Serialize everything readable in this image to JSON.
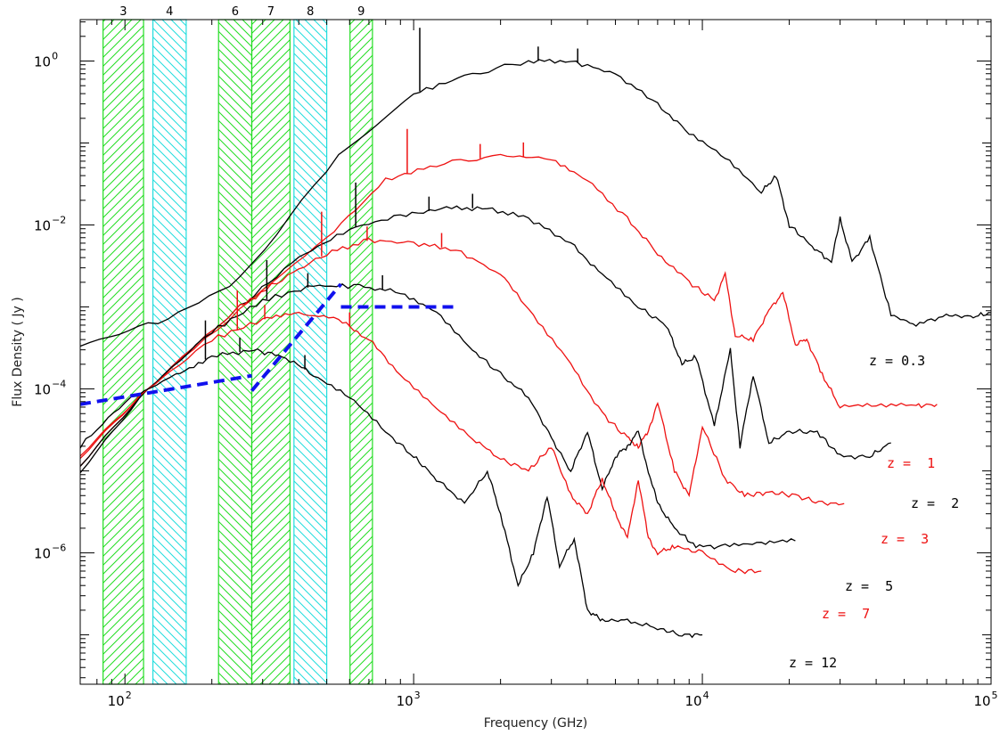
{
  "colors": {
    "black_curve": "#000000",
    "red_curve": "#ee1111",
    "band_green": "#22dd22",
    "band_cyan": "#22dddd",
    "sensitivity": "#1111ee"
  },
  "chart_data": {
    "type": "line",
    "title": "",
    "xlabel": "Frequency (GHz)",
    "ylabel": "Flux Density ( Jy )",
    "xscale": "log",
    "yscale": "log",
    "xlim": [
      70,
      100000
    ],
    "ylim": [
      2.5e-08,
      3.2
    ],
    "x_ticks": [
      {
        "value": 100,
        "base": "10",
        "exp": "2"
      },
      {
        "value": 1000,
        "base": "10",
        "exp": "3"
      },
      {
        "value": 10000,
        "base": "10",
        "exp": "4"
      },
      {
        "value": 100000,
        "base": "10",
        "exp": "5"
      }
    ],
    "y_ticks": [
      {
        "value": 1e-06,
        "base": "10",
        "exp": "−6"
      },
      {
        "value": 0.0001,
        "base": "10",
        "exp": "−4"
      },
      {
        "value": 0.01,
        "base": "10",
        "exp": "−2"
      },
      {
        "value": 1,
        "base": "10",
        "exp": "0"
      }
    ],
    "grid": false,
    "bands": [
      {
        "label": "3",
        "range": [
          84,
          116
        ],
        "color": "green",
        "hatch": "right"
      },
      {
        "label": "4",
        "range": [
          125,
          163
        ],
        "color": "cyan",
        "hatch": "left"
      },
      {
        "label": "6",
        "range": [
          211,
          275
        ],
        "color": "green",
        "hatch": "left"
      },
      {
        "label": "7",
        "range": [
          275,
          373
        ],
        "color": "green",
        "hatch": "right"
      },
      {
        "label": "8",
        "range": [
          385,
          500
        ],
        "color": "cyan",
        "hatch": "left"
      },
      {
        "label": "9",
        "range": [
          602,
          720
        ],
        "color": "green",
        "hatch": "right"
      }
    ],
    "sensitivity_lines": [
      {
        "x": [
          70,
          275
        ],
        "y": [
          6.5e-05,
          0.000145
        ]
      },
      {
        "x": [
          275,
          560
        ],
        "y": [
          9.5e-05,
          0.0019
        ]
      },
      {
        "x": [
          560,
          1400
        ],
        "y": [
          0.001,
          0.001
        ]
      }
    ],
    "series": [
      {
        "name": "z = 0.3",
        "color": "black",
        "label_text": "z = 0.3",
        "x": [
          70,
          130,
          250,
          550,
          1000,
          1500,
          2500,
          3500,
          5000,
          7000,
          9000,
          12000,
          16000,
          18000,
          20000,
          24000,
          28000,
          30000,
          33000,
          38000,
          45000,
          55000,
          70000,
          85000,
          100000
        ],
        "y": [
          0.00035,
          0.00065,
          0.0022,
          0.07,
          0.4,
          0.65,
          1.0,
          1.0,
          0.7,
          0.3,
          0.13,
          0.065,
          0.025,
          0.04,
          0.01,
          0.0055,
          0.0035,
          0.012,
          0.0035,
          0.007,
          0.0008,
          0.0006,
          0.0008,
          0.00075,
          0.00085
        ],
        "lines_x": [
          1050,
          2700,
          3700
        ],
        "lines_h": [
          6.0,
          1.5,
          1.5
        ]
      },
      {
        "name": "z = 1",
        "color": "red",
        "label_text": "z =  1",
        "x": [
          70,
          120,
          250,
          500,
          800,
          1200,
          2000,
          3000,
          4000,
          5500,
          7000,
          9000,
          11000,
          12000,
          13000,
          15000,
          17000,
          19000,
          21000,
          23000,
          26000,
          30000,
          40000,
          55000,
          65000
        ],
        "y": [
          1.2e-05,
          0.0001,
          0.0009,
          0.007,
          0.035,
          0.055,
          0.07,
          0.065,
          0.035,
          0.012,
          0.0045,
          0.002,
          0.0012,
          0.0025,
          0.00045,
          0.0004,
          0.0009,
          0.0015,
          0.00035,
          0.0004,
          0.00015,
          6e-05,
          6.5e-05,
          6.2e-05,
          6.5e-05
        ],
        "lines_x": [
          950,
          1700,
          2400
        ],
        "lines_h": [
          3.5,
          1.5,
          1.5
        ]
      },
      {
        "name": "z = 2",
        "color": "black",
        "label_text": "z =  2",
        "x": [
          70,
          120,
          250,
          400,
          600,
          900,
          1300,
          1800,
          2500,
          3500,
          4500,
          6000,
          7500,
          8500,
          9500,
          11000,
          12500,
          13500,
          15000,
          17000,
          20000,
          25000,
          30000,
          38000,
          45000
        ],
        "y": [
          1.2e-05,
          0.0001,
          0.001,
          0.004,
          0.009,
          0.013,
          0.016,
          0.016,
          0.012,
          0.006,
          0.0025,
          0.001,
          0.0006,
          0.0002,
          0.00025,
          3.5e-05,
          0.0003,
          2e-05,
          0.00015,
          2.2e-05,
          3e-05,
          3e-05,
          1.5e-05,
          1.5e-05,
          2.2e-05
        ],
        "lines_x": [
          630,
          1130,
          1600
        ],
        "lines_h": [
          3.5,
          1.5,
          1.5
        ]
      },
      {
        "name": "z = 3",
        "color": "red",
        "label_text": "z =  3",
        "x": [
          70,
          120,
          250,
          350,
          500,
          700,
          1000,
          1400,
          2000,
          2600,
          3500,
          4500,
          5500,
          6000,
          6500,
          7000,
          8000,
          9000,
          10000,
          12000,
          14000,
          17000,
          21000,
          26000,
          31000
        ],
        "y": [
          1.5e-05,
          0.0001,
          0.001,
          0.0022,
          0.0045,
          0.0065,
          0.006,
          0.005,
          0.0025,
          0.0008,
          0.0002,
          5e-05,
          2.5e-05,
          2e-05,
          3e-05,
          7e-05,
          1e-05,
          5e-06,
          3.5e-05,
          8e-06,
          5e-06,
          5.5e-06,
          5e-06,
          4e-06,
          4e-06
        ],
        "lines_x": [
          480,
          690,
          1250
        ],
        "lines_h": [
          3.5,
          1.5,
          1.5
        ]
      },
      {
        "name": "z = 5",
        "color": "black",
        "label_text": "z =  5",
        "x": [
          70,
          120,
          200,
          300,
          450,
          650,
          900,
          1200,
          1600,
          2000,
          2500,
          3000,
          3500,
          4000,
          4500,
          5000,
          5500,
          6000,
          6500,
          7000,
          8000,
          9500,
          12000,
          16000,
          21000
        ],
        "y": [
          1e-05,
          0.0001,
          0.0005,
          0.0012,
          0.0018,
          0.0018,
          0.0015,
          0.0009,
          0.0003,
          0.00015,
          8e-05,
          2.5e-05,
          1e-05,
          3e-05,
          6e-06,
          1.5e-05,
          2e-05,
          3e-05,
          1e-05,
          4e-06,
          2e-06,
          1.2e-06,
          1.2e-06,
          1.3e-06,
          1.4e-06
        ],
        "lines_x": [
          310,
          430,
          780
        ],
        "lines_h": [
          3.0,
          1.5,
          1.5
        ]
      },
      {
        "name": "z = 7",
        "color": "red",
        "label_text": "z =  7",
        "x": [
          70,
          120,
          200,
          300,
          400,
          550,
          700,
          900,
          1200,
          1600,
          2000,
          2500,
          3000,
          3500,
          4000,
          4500,
          5000,
          5500,
          6000,
          6500,
          7000,
          8000,
          10000,
          13000,
          16000
        ],
        "y": [
          1.6e-05,
          0.0001,
          0.0004,
          0.0007,
          0.00085,
          0.0007,
          0.0004,
          0.00015,
          6e-05,
          2.5e-05,
          1.4e-05,
          1e-05,
          2e-05,
          5e-06,
          3e-06,
          8e-06,
          3e-06,
          1.5e-06,
          8e-06,
          1.5e-06,
          1e-06,
          1.2e-06,
          1e-06,
          6e-07,
          6e-07
        ],
        "lines_x": [
          245,
          305,
          600
        ],
        "lines_h": [
          3.0,
          1.5,
          1.5
        ]
      },
      {
        "name": "z = 12",
        "color": "black",
        "label_text": "z = 12",
        "x": [
          70,
          100,
          150,
          200,
          280,
          350,
          450,
          600,
          800,
          1000,
          1200,
          1500,
          1800,
          2000,
          2300,
          2600,
          2900,
          3200,
          3600,
          4000,
          4500,
          5500,
          7000,
          8500,
          10000
        ],
        "y": [
          2e-05,
          7e-05,
          0.00015,
          0.00025,
          0.0003,
          0.00025,
          0.00015,
          8e-05,
          3e-05,
          1.5e-05,
          8e-06,
          4e-06,
          1e-05,
          3e-06,
          4e-07,
          1e-06,
          5e-06,
          7e-07,
          1.5e-06,
          2e-07,
          1.5e-07,
          1.5e-07,
          1.2e-07,
          1e-07,
          1e-07
        ],
        "lines_x": [
          190,
          250,
          420
        ],
        "lines_h": [
          3.0,
          1.5,
          1.5
        ]
      }
    ]
  }
}
